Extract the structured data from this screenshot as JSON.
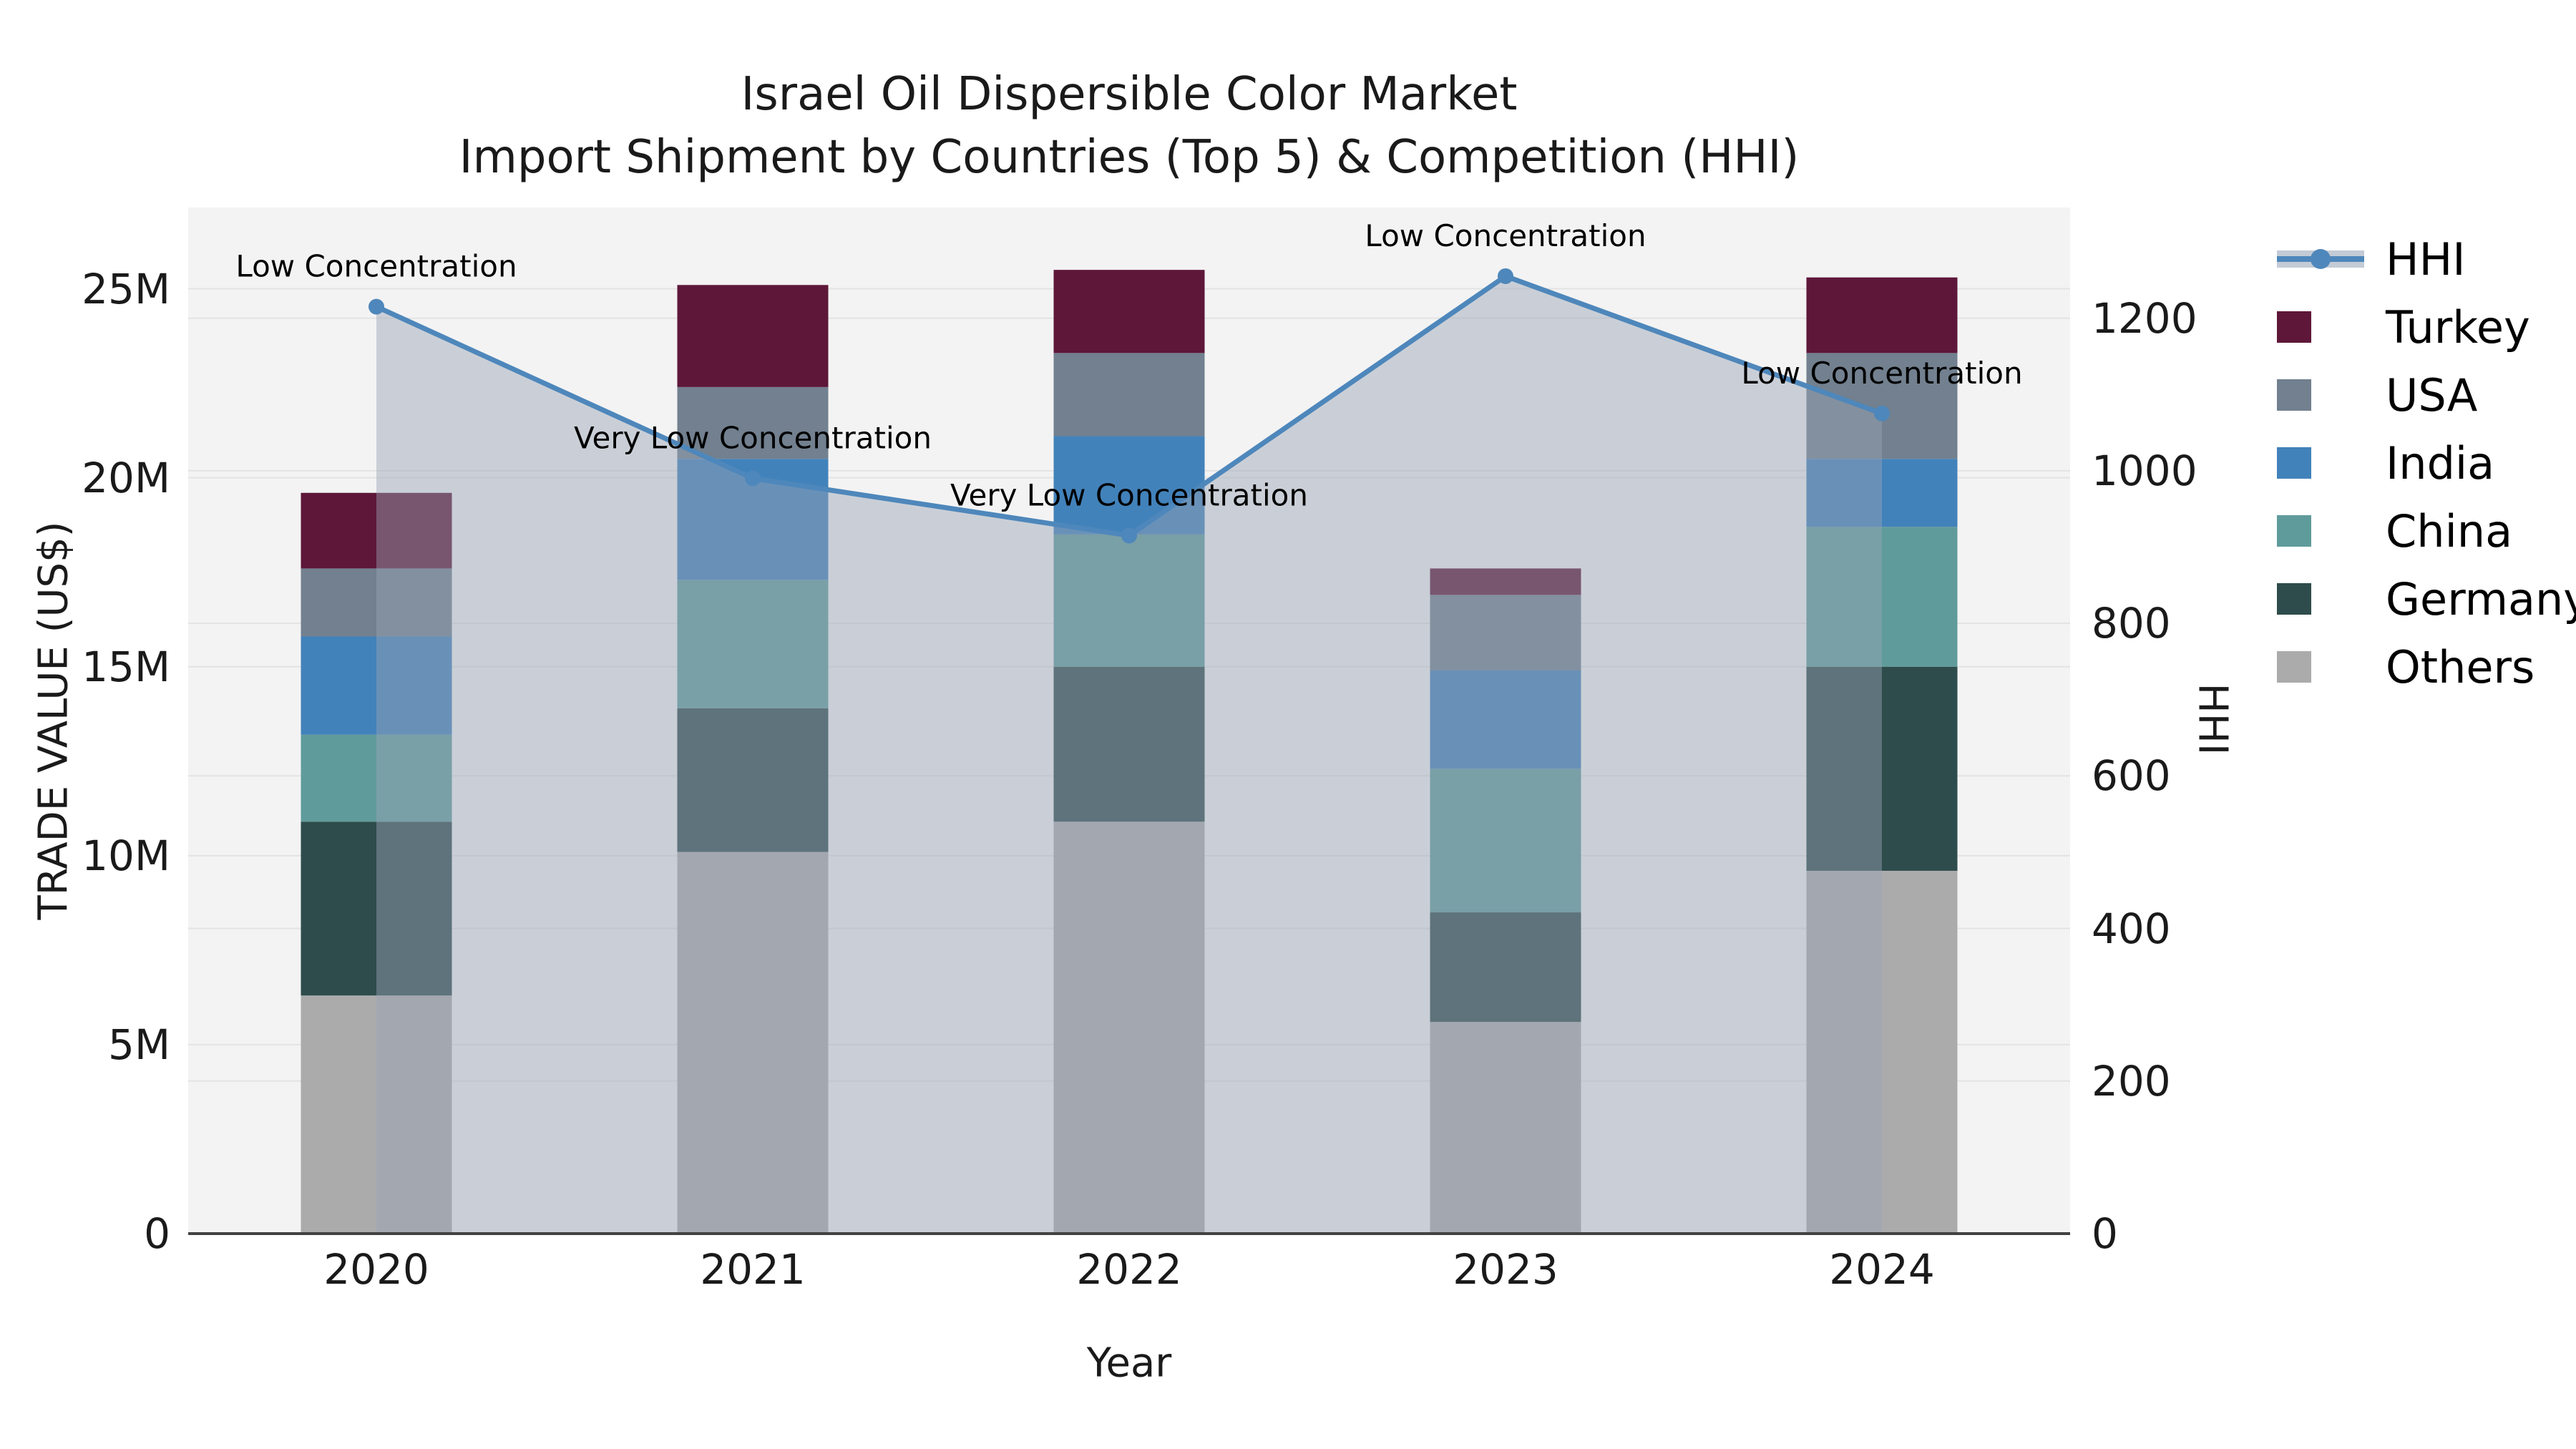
{
  "title": {
    "line1": "Israel Oil Dispersible Color Market",
    "line2": "Import Shipment by Countries (Top 5) & Competition (HHI)"
  },
  "chart_data": {
    "type": "stacked-bar+line",
    "categories": [
      "2020",
      "2021",
      "2022",
      "2023",
      "2024"
    ],
    "bar_value_unit": "million US$",
    "series": [
      {
        "name": "Others",
        "color": "#ABABAB",
        "values": [
          6.3,
          10.1,
          10.9,
          5.6,
          9.6
        ]
      },
      {
        "name": "Germany",
        "color": "#2E4C4B",
        "values": [
          4.6,
          3.8,
          4.1,
          2.9,
          5.4
        ]
      },
      {
        "name": "China",
        "color": "#609B9C",
        "values": [
          2.3,
          3.4,
          3.5,
          3.8,
          3.7
        ]
      },
      {
        "name": "India",
        "color": "#4282BA",
        "values": [
          2.6,
          3.2,
          2.6,
          2.6,
          1.8
        ]
      },
      {
        "name": "USA",
        "color": "#72808F",
        "values": [
          1.8,
          1.9,
          2.2,
          2.0,
          2.8
        ]
      },
      {
        "name": "Turkey",
        "color": "#5E1738",
        "values": [
          2.0,
          2.7,
          2.2,
          0.7,
          2.0
        ]
      }
    ],
    "line": {
      "name": "HHI",
      "color": "#4E87BB",
      "area_fill": "rgba(153,163,181,0.45)",
      "values": [
        1215,
        990,
        915,
        1255,
        1075
      ],
      "annotations": [
        "Low Concentration",
        "Very Low Concentration",
        "Very Low Concentration",
        "Low Concentration",
        "Low Concentration"
      ]
    },
    "left_axis": {
      "label": "TRADE VALUE (US$)",
      "max": 27.15,
      "ticks": [
        {
          "value": 0,
          "label": "0"
        },
        {
          "value": 5,
          "label": "5M"
        },
        {
          "value": 10,
          "label": "10M"
        },
        {
          "value": 15,
          "label": "15M"
        },
        {
          "value": 20,
          "label": "20M"
        },
        {
          "value": 25,
          "label": "25M"
        }
      ]
    },
    "right_axis": {
      "label": "HHI",
      "max": 1345,
      "ticks": [
        {
          "value": 0,
          "label": "0"
        },
        {
          "value": 200,
          "label": "200"
        },
        {
          "value": 400,
          "label": "400"
        },
        {
          "value": 600,
          "label": "600"
        },
        {
          "value": 800,
          "label": "800"
        },
        {
          "value": 1000,
          "label": "1000"
        },
        {
          "value": 1200,
          "label": "1200"
        }
      ]
    },
    "x_axis": {
      "label": "Year"
    },
    "style": {
      "plot_bg": "#F3F3F3",
      "grid_color": "#E3E3E3",
      "spine_color": "#424242",
      "annotation_color": "#000000"
    }
  },
  "legend": {
    "items": [
      {
        "label": "HHI",
        "type": "line",
        "color": "#4E87BB"
      },
      {
        "label": "Turkey",
        "type": "swatch",
        "color": "#5E1738"
      },
      {
        "label": "USA",
        "type": "swatch",
        "color": "#72808F"
      },
      {
        "label": "India",
        "type": "swatch",
        "color": "#4282BA"
      },
      {
        "label": "China",
        "type": "swatch",
        "color": "#609B9C"
      },
      {
        "label": "Germany",
        "type": "swatch",
        "color": "#2E4C4B"
      },
      {
        "label": "Others",
        "type": "swatch",
        "color": "#ABABAB"
      }
    ]
  }
}
